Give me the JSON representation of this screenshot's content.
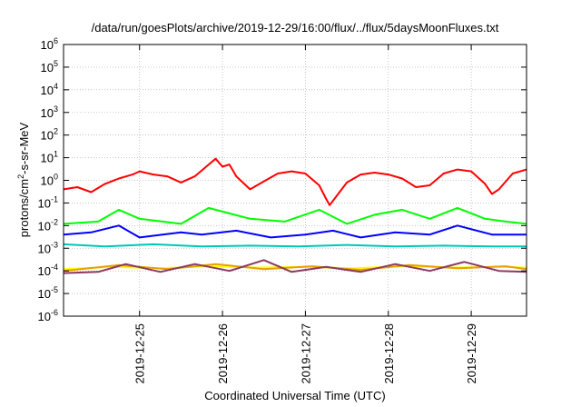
{
  "chart_data": {
    "type": "line",
    "title": "/data/run/goesPlots/archive/2019-12-29/16:00/flux/../flux/5daysMoonFluxes.txt",
    "xlabel": "Coordinated Universal Time (UTC)",
    "ylabel_parts": {
      "base": "protons/cm",
      "sup": "2",
      "rest": "-s-sr-MeV"
    },
    "y_scale": "log",
    "ylim": [
      1e-06,
      1000000.0
    ],
    "y_ticks": [
      {
        "value": 1e-06,
        "base": "10",
        "exp": "-6"
      },
      {
        "value": 1e-05,
        "base": "10",
        "exp": "-5"
      },
      {
        "value": 0.0001,
        "base": "10",
        "exp": "-4"
      },
      {
        "value": 0.001,
        "base": "10",
        "exp": "-3"
      },
      {
        "value": 0.01,
        "base": "10",
        "exp": "-2"
      },
      {
        "value": 0.1,
        "base": "10",
        "exp": "-1"
      },
      {
        "value": 1.0,
        "base": "10",
        "exp": "0"
      },
      {
        "value": 10.0,
        "base": "10",
        "exp": "1"
      },
      {
        "value": 100.0,
        "base": "10",
        "exp": "2"
      },
      {
        "value": 1000.0,
        "base": "10",
        "exp": "3"
      },
      {
        "value": 10000.0,
        "base": "10",
        "exp": "4"
      },
      {
        "value": 100000.0,
        "base": "10",
        "exp": "5"
      },
      {
        "value": 1000000.0,
        "base": "10",
        "exp": "6"
      }
    ],
    "x_range": [
      "2019-12-24T02:00",
      "2019-12-29T16:00"
    ],
    "x_ticks": [
      "2019-12-25",
      "2019-12-26",
      "2019-12-27",
      "2019-12-28",
      "2019-12-29"
    ],
    "grid": true,
    "series": [
      {
        "color": "#ff0000",
        "points": [
          [
            "2019-12-24T02:00",
            0.4
          ],
          [
            "2019-12-24T06:00",
            0.5
          ],
          [
            "2019-12-24T10:00",
            0.3
          ],
          [
            "2019-12-24T14:00",
            0.7
          ],
          [
            "2019-12-24T18:00",
            1.2
          ],
          [
            "2019-12-24T22:00",
            1.8
          ],
          [
            "2019-12-25T00:00",
            2.5
          ],
          [
            "2019-12-25T04:00",
            1.8
          ],
          [
            "2019-12-25T08:00",
            1.5
          ],
          [
            "2019-12-25T12:00",
            0.8
          ],
          [
            "2019-12-25T16:00",
            1.5
          ],
          [
            "2019-12-25T20:00",
            5.0
          ],
          [
            "2019-12-25T22:00",
            9.0
          ],
          [
            "2019-12-26T00:00",
            4.0
          ],
          [
            "2019-12-26T02:00",
            5.0
          ],
          [
            "2019-12-26T04:00",
            1.5
          ],
          [
            "2019-12-26T08:00",
            0.4
          ],
          [
            "2019-12-26T12:00",
            0.9
          ],
          [
            "2019-12-26T16:00",
            2.0
          ],
          [
            "2019-12-26T20:00",
            2.5
          ],
          [
            "2019-12-27T00:00",
            2.0
          ],
          [
            "2019-12-27T04:00",
            0.6
          ],
          [
            "2019-12-27T06:00",
            0.15
          ],
          [
            "2019-12-27T07:00",
            0.08
          ],
          [
            "2019-12-27T09:00",
            0.2
          ],
          [
            "2019-12-27T12:00",
            0.8
          ],
          [
            "2019-12-27T16:00",
            1.8
          ],
          [
            "2019-12-27T20:00",
            2.2
          ],
          [
            "2019-12-28T00:00",
            1.8
          ],
          [
            "2019-12-28T04:00",
            1.2
          ],
          [
            "2019-12-28T08:00",
            0.5
          ],
          [
            "2019-12-28T12:00",
            0.6
          ],
          [
            "2019-12-28T16:00",
            2.0
          ],
          [
            "2019-12-28T20:00",
            3.0
          ],
          [
            "2019-12-29T00:00",
            2.5
          ],
          [
            "2019-12-29T04:00",
            0.7
          ],
          [
            "2019-12-29T06:00",
            0.25
          ],
          [
            "2019-12-29T08:00",
            0.4
          ],
          [
            "2019-12-29T12:00",
            2.0
          ],
          [
            "2019-12-29T16:00",
            3.0
          ]
        ]
      },
      {
        "color": "#00ff00",
        "points": [
          [
            "2019-12-24T02:00",
            0.012
          ],
          [
            "2019-12-24T12:00",
            0.015
          ],
          [
            "2019-12-24T18:00",
            0.05
          ],
          [
            "2019-12-25T00:00",
            0.02
          ],
          [
            "2019-12-25T12:00",
            0.012
          ],
          [
            "2019-12-25T20:00",
            0.06
          ],
          [
            "2019-12-26T08:00",
            0.02
          ],
          [
            "2019-12-26T18:00",
            0.015
          ],
          [
            "2019-12-27T04:00",
            0.05
          ],
          [
            "2019-12-27T12:00",
            0.012
          ],
          [
            "2019-12-27T20:00",
            0.03
          ],
          [
            "2019-12-28T04:00",
            0.05
          ],
          [
            "2019-12-28T12:00",
            0.02
          ],
          [
            "2019-12-28T20:00",
            0.06
          ],
          [
            "2019-12-29T04:00",
            0.02
          ],
          [
            "2019-12-29T10:00",
            0.015
          ],
          [
            "2019-12-29T16:00",
            0.012
          ]
        ]
      },
      {
        "color": "#0000ff",
        "points": [
          [
            "2019-12-24T02:00",
            0.004
          ],
          [
            "2019-12-24T10:00",
            0.005
          ],
          [
            "2019-12-24T18:00",
            0.01
          ],
          [
            "2019-12-25T00:00",
            0.003
          ],
          [
            "2019-12-25T12:00",
            0.005
          ],
          [
            "2019-12-25T18:00",
            0.004
          ],
          [
            "2019-12-26T04:00",
            0.006
          ],
          [
            "2019-12-26T14:00",
            0.003
          ],
          [
            "2019-12-27T00:00",
            0.004
          ],
          [
            "2019-12-27T08:00",
            0.006
          ],
          [
            "2019-12-27T16:00",
            0.003
          ],
          [
            "2019-12-28T02:00",
            0.005
          ],
          [
            "2019-12-28T12:00",
            0.004
          ],
          [
            "2019-12-28T20:00",
            0.01
          ],
          [
            "2019-12-29T06:00",
            0.004
          ],
          [
            "2019-12-29T16:00",
            0.004
          ]
        ]
      },
      {
        "color": "#00c8b4",
        "points": [
          [
            "2019-12-24T02:00",
            0.0015
          ],
          [
            "2019-12-24T14:00",
            0.0012
          ],
          [
            "2019-12-25T04:00",
            0.0015
          ],
          [
            "2019-12-25T18:00",
            0.0012
          ],
          [
            "2019-12-26T08:00",
            0.0013
          ],
          [
            "2019-12-26T22:00",
            0.0012
          ],
          [
            "2019-12-27T12:00",
            0.0014
          ],
          [
            "2019-12-28T02:00",
            0.0012
          ],
          [
            "2019-12-28T16:00",
            0.0013
          ],
          [
            "2019-12-29T06:00",
            0.0012
          ],
          [
            "2019-12-29T16:00",
            0.0012
          ]
        ]
      },
      {
        "color": "#ffff00",
        "points": [
          [
            "2019-12-24T02:00",
            0.00012
          ],
          [
            "2019-12-24T16:00",
            0.00015
          ],
          [
            "2019-12-25T06:00",
            0.00013
          ],
          [
            "2019-12-25T20:00",
            0.00016
          ],
          [
            "2019-12-26T10:00",
            0.00014
          ],
          [
            "2019-12-27T00:00",
            0.00015
          ],
          [
            "2019-12-27T14:00",
            0.00013
          ],
          [
            "2019-12-28T04:00",
            0.00016
          ],
          [
            "2019-12-28T18:00",
            0.00014
          ],
          [
            "2019-12-29T08:00",
            0.00015
          ],
          [
            "2019-12-29T16:00",
            0.00014
          ]
        ]
      },
      {
        "color": "#e6a000",
        "points": [
          [
            "2019-12-24T02:00",
            0.0001
          ],
          [
            "2019-12-24T18:00",
            0.00018
          ],
          [
            "2019-12-25T08:00",
            0.00012
          ],
          [
            "2019-12-25T22:00",
            0.0002
          ],
          [
            "2019-12-26T12:00",
            0.00012
          ],
          [
            "2019-12-27T02:00",
            0.00016
          ],
          [
            "2019-12-27T16:00",
            0.00011
          ],
          [
            "2019-12-28T06:00",
            0.00018
          ],
          [
            "2019-12-28T20:00",
            0.00013
          ],
          [
            "2019-12-29T10:00",
            0.00016
          ],
          [
            "2019-12-29T16:00",
            0.00012
          ]
        ]
      },
      {
        "color": "#8b3a62",
        "points": [
          [
            "2019-12-24T02:00",
            8e-05
          ],
          [
            "2019-12-24T12:00",
            9e-05
          ],
          [
            "2019-12-24T20:00",
            0.0002
          ],
          [
            "2019-12-25T06:00",
            9e-05
          ],
          [
            "2019-12-25T16:00",
            0.0002
          ],
          [
            "2019-12-26T02:00",
            0.0001
          ],
          [
            "2019-12-26T12:00",
            0.0003
          ],
          [
            "2019-12-26T20:00",
            9e-05
          ],
          [
            "2019-12-27T06:00",
            0.00015
          ],
          [
            "2019-12-27T16:00",
            9e-05
          ],
          [
            "2019-12-28T02:00",
            0.0002
          ],
          [
            "2019-12-28T12:00",
            0.0001
          ],
          [
            "2019-12-28T22:00",
            0.00025
          ],
          [
            "2019-12-29T08:00",
            0.0001
          ],
          [
            "2019-12-29T16:00",
            9e-05
          ]
        ]
      }
    ]
  }
}
